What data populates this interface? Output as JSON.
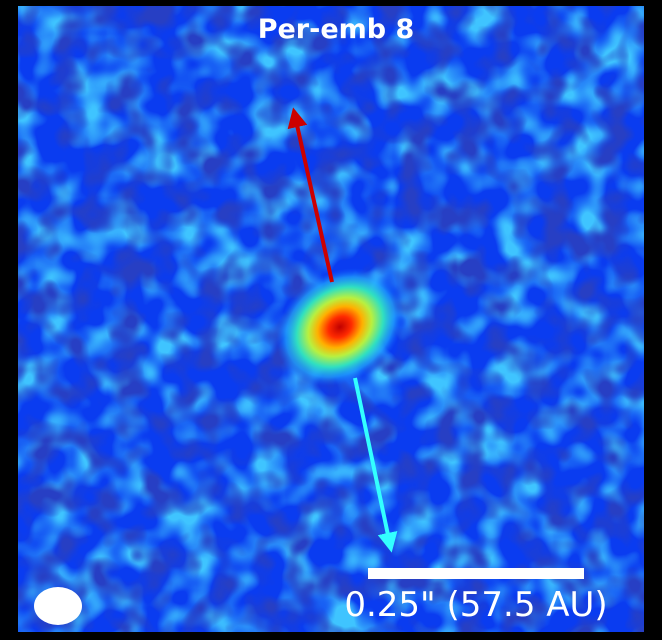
{
  "title": "Per-emb 8",
  "scale_bar": {
    "label": "0.25\" (57.5 AU)"
  }
}
